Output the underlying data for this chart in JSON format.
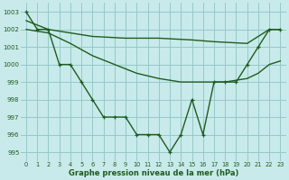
{
  "bg_color": "#c8eaea",
  "grid_color": "#96c8c8",
  "line_color": "#1e5c1e",
  "title": "Graphe pression niveau de la mer (hPa)",
  "xlim": [
    -0.5,
    23.5
  ],
  "ylim": [
    994.5,
    1003.5
  ],
  "yticks": [
    995,
    996,
    997,
    998,
    999,
    1000,
    1001,
    1002,
    1003
  ],
  "xticks": [
    0,
    1,
    2,
    3,
    4,
    5,
    6,
    7,
    8,
    9,
    10,
    11,
    12,
    13,
    14,
    15,
    16,
    17,
    18,
    19,
    20,
    21,
    22,
    23
  ],
  "series": [
    {
      "x": [
        0,
        1,
        2,
        3,
        4,
        5,
        6,
        7,
        8,
        9,
        10,
        11,
        12,
        13,
        14,
        15,
        16,
        17,
        18,
        19,
        20,
        21,
        22,
        23
      ],
      "y": [
        1003,
        1002,
        1002,
        1000,
        1000,
        999,
        998,
        997,
        997,
        997,
        996,
        996,
        996,
        995,
        996,
        998,
        996,
        999,
        999,
        999,
        1000,
        1001,
        1002,
        1002
      ],
      "marker": true,
      "linewidth": 1.0
    },
    {
      "x": [
        0,
        2,
        4,
        6,
        9,
        12,
        15,
        17,
        20,
        22,
        23
      ],
      "y": [
        1002.5,
        1002,
        1001.8,
        1001.6,
        1001.5,
        1001.5,
        1001.4,
        1001.3,
        1001.2,
        1002,
        1002
      ],
      "marker": false,
      "linewidth": 1.0
    },
    {
      "x": [
        0,
        2,
        4,
        6,
        8,
        10,
        12,
        14,
        16,
        18,
        20,
        21,
        22,
        23
      ],
      "y": [
        1002,
        1001.8,
        1001.2,
        1000.5,
        1000.0,
        999.5,
        999.2,
        999.0,
        999.0,
        999.0,
        999.2,
        999.5,
        1000,
        1000.2
      ],
      "marker": false,
      "linewidth": 1.0
    }
  ]
}
